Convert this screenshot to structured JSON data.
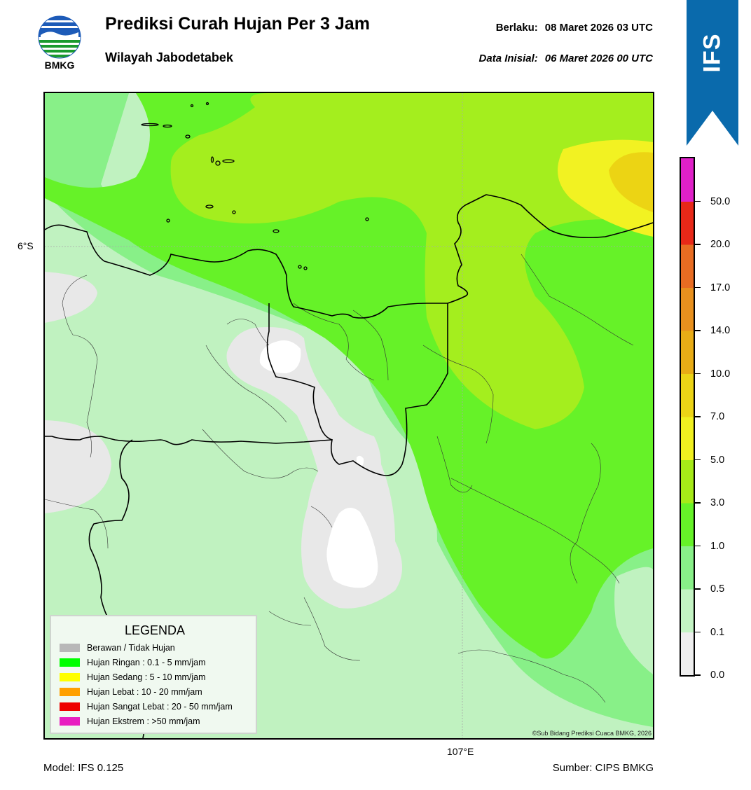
{
  "header": {
    "logo_text": "BMKG",
    "title": "Prediksi Curah Hujan Per 3 Jam",
    "subtitle": "Wilayah Jabodetabek",
    "valid_label": "Berlaku:",
    "valid_value": "08 Maret 2026 03 UTC",
    "init_label": "Data Inisial:",
    "init_value": "06 Maret 2026 00 UTC"
  },
  "banner": {
    "label": "IFS",
    "color": "#0a6aac"
  },
  "map": {
    "lat_label": "6°S",
    "lon_label": "107°E",
    "copyright": "©Sub Bidang Prediksi Cuaca BMKG, 2026",
    "colors": {
      "level_0": "#e8e8e8",
      "level_01": "#c0f2c0",
      "level_05": "#88f088",
      "level_1": "#66f228",
      "level_3": "#a4ee1e",
      "level_5": "#f2f222",
      "level_7": "#ecd414",
      "dry": "#ffffff"
    }
  },
  "legend": {
    "title": "LEGENDA",
    "items": [
      {
        "label": "Berawan / Tidak Hujan",
        "color": "#b8b8b8"
      },
      {
        "label": "Hujan Ringan : 0.1 - 5 mm/jam",
        "color": "#00ff00"
      },
      {
        "label": "Hujan Sedang : 5 - 10 mm/jam",
        "color": "#ffff00"
      },
      {
        "label": "Hujan Lebat : 10 - 20 mm/jam",
        "color": "#ffa000"
      },
      {
        "label": "Hujan Sangat Lebat : 20 - 50 mm/jam",
        "color": "#ee0000"
      },
      {
        "label": "Hujan Ekstrem : >50 mm/jam",
        "color": "#e81ec0"
      }
    ]
  },
  "colorbar": {
    "labels": [
      "0.0",
      "0.1",
      "0.5",
      "1.0",
      "3.0",
      "5.0",
      "7.0",
      "10.0",
      "14.0",
      "17.0",
      "20.0",
      "50.0"
    ],
    "colors": [
      "#eeeeee",
      "#c4f4c4",
      "#88f088",
      "#66f228",
      "#a6ea18",
      "#f0f020",
      "#ecd416",
      "#e8ac16",
      "#e8901e",
      "#e86c22",
      "#e82818",
      "#e020c8"
    ]
  },
  "footer": {
    "model": "Model: IFS 0.125",
    "source": "Sumber: CIPS BMKG"
  }
}
